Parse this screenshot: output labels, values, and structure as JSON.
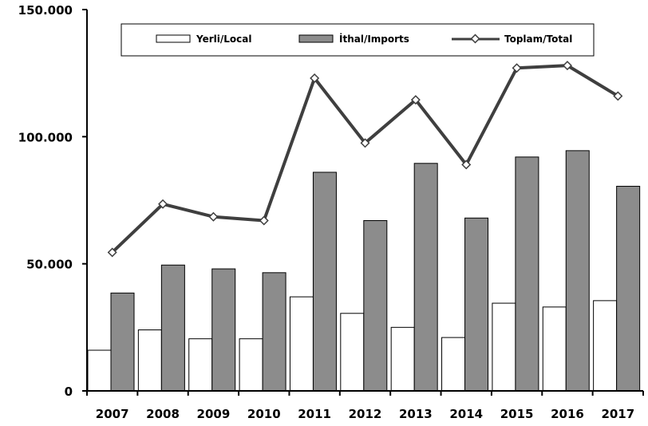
{
  "chart_data": {
    "type": "bar",
    "categories": [
      "2007",
      "2008",
      "2009",
      "2010",
      "2011",
      "2012",
      "2013",
      "2014",
      "2015",
      "2016",
      "2017"
    ],
    "series": [
      {
        "name": "Yerli/Local",
        "kind": "bar",
        "color": "#ffffff",
        "values": [
          16000,
          24000,
          20500,
          20500,
          37000,
          30500,
          25000,
          21000,
          34500,
          33000,
          35500
        ]
      },
      {
        "name": "İthal/Imports",
        "kind": "bar",
        "color": "#8c8c8c",
        "values": [
          38500,
          49500,
          48000,
          46500,
          86000,
          67000,
          89500,
          68000,
          92000,
          94500,
          80500
        ]
      },
      {
        "name": "Toplam/Total",
        "kind": "line",
        "color": "#3f3f3f",
        "values": [
          54500,
          73500,
          68500,
          67000,
          123000,
          97500,
          114500,
          89000,
          127000,
          128000,
          116000
        ]
      }
    ],
    "ylim": [
      0,
      150000
    ],
    "yticks": [
      0,
      50000,
      100000,
      150000
    ],
    "ytick_labels": [
      "0",
      "50.000",
      "100.000",
      "150.000"
    ],
    "legend_position": "top",
    "grid": false
  }
}
